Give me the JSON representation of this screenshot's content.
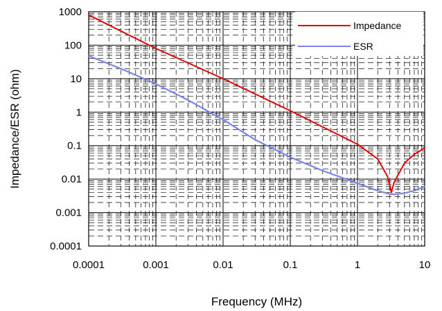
{
  "chart_data": {
    "type": "line",
    "xlabel": "Frequency (MHz)",
    "ylabel": "Impedance/ESR (ohm)",
    "x_scale": "log",
    "y_scale": "log",
    "xlim": [
      0.0001,
      10
    ],
    "ylim": [
      0.0001,
      1000
    ],
    "x_ticks": [
      0.0001,
      0.001,
      0.01,
      0.1,
      1,
      10
    ],
    "x_tick_labels": [
      "0.0001",
      "0.001",
      "0.01",
      "0.1",
      "1",
      "10"
    ],
    "y_ticks": [
      0.0001,
      0.001,
      0.01,
      0.1,
      1,
      10,
      100,
      1000
    ],
    "y_tick_labels": [
      "0.0001",
      "0.001",
      "0.01",
      "0.1",
      "1",
      "10",
      "100",
      "1000"
    ],
    "grid": true,
    "legend_position": "top-right",
    "series": [
      {
        "name": "Impedance",
        "color": "#e00000",
        "x": [
          0.0001,
          0.001,
          0.01,
          0.1,
          1,
          2,
          2.8,
          3.2,
          3.5,
          5,
          7,
          10
        ],
        "y": [
          800,
          80,
          10,
          1.1,
          0.11,
          0.04,
          0.012,
          0.004,
          0.008,
          0.03,
          0.055,
          0.085
        ]
      },
      {
        "name": "ESR",
        "color": "#7a85e8",
        "x": [
          0.0001,
          0.0003,
          0.001,
          0.003,
          0.01,
          0.03,
          0.1,
          0.3,
          1,
          2,
          3,
          3.5,
          5,
          7,
          10
        ],
        "y": [
          48,
          20,
          7,
          2.3,
          0.6,
          0.15,
          0.045,
          0.018,
          0.0075,
          0.0045,
          0.0036,
          0.0035,
          0.0038,
          0.0045,
          0.006
        ]
      }
    ]
  }
}
